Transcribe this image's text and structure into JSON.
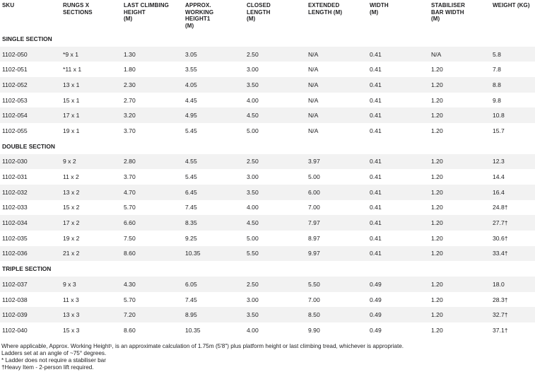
{
  "columns": [
    "SKU",
    "RUNGS X\nSECTIONS",
    "LAST CLIMBING\nHEIGHT\n(M)",
    "APPROX.\nWORKING\nHEIGHT1\n(M)",
    "CLOSED\nLENGTH\n(M)",
    "EXTENDED\nLENGTH (M)",
    "WIDTH\n(M)",
    "STABILISER\nBAR WIDTH\n(M)",
    "WEIGHT (KG)"
  ],
  "sections": [
    {
      "title": "SINGLE SECTION",
      "rows": [
        [
          "1102-050",
          "*9 x 1",
          "1.30",
          "3.05",
          "2.50",
          "N/A",
          "0.41",
          "N/A",
          "5.8"
        ],
        [
          "1102-051",
          "*11 x 1",
          "1.80",
          "3.55",
          "3.00",
          "N/A",
          "0.41",
          "1.20",
          "7.8"
        ],
        [
          "1102-052",
          "13 x 1",
          "2.30",
          "4.05",
          "3.50",
          "N/A",
          "0.41",
          "1.20",
          "8.8"
        ],
        [
          "1102-053",
          "15 x 1",
          "2.70",
          "4.45",
          "4.00",
          "N/A",
          "0.41",
          "1.20",
          "9.8"
        ],
        [
          "1102-054",
          "17 x 1",
          "3.20",
          "4.95",
          "4.50",
          "N/A",
          "0.41",
          "1.20",
          "10.8"
        ],
        [
          "1102-055",
          "19 x 1",
          "3.70",
          "5.45",
          "5.00",
          "N/A",
          "0.41",
          "1.20",
          "15.7"
        ]
      ]
    },
    {
      "title": "DOUBLE SECTION",
      "rows": [
        [
          "1102-030",
          "9 x 2",
          "2.80",
          "4.55",
          "2.50",
          "3.97",
          "0.41",
          "1.20",
          "12.3"
        ],
        [
          "1102-031",
          "11 x 2",
          "3.70",
          "5.45",
          "3.00",
          "5.00",
          "0.41",
          "1.20",
          "14.4"
        ],
        [
          "1102-032",
          "13 x 2",
          "4.70",
          "6.45",
          "3.50",
          "6.00",
          "0.41",
          "1.20",
          "16.4"
        ],
        [
          "1102-033",
          "15 x 2",
          "5.70",
          "7.45",
          "4.00",
          "7.00",
          "0.41",
          "1.20",
          "24.8†"
        ],
        [
          "1102-034",
          "17 x 2",
          "6.60",
          "8.35",
          "4.50",
          "7.97",
          "0.41",
          "1.20",
          "27.7†"
        ],
        [
          "1102-035",
          "19 x 2",
          "7.50",
          "9.25",
          "5.00",
          "8.97",
          "0.41",
          "1.20",
          "30.6†"
        ],
        [
          "1102-036",
          "21 x 2",
          "8.60",
          "10.35",
          "5.50",
          "9.97",
          "0.41",
          "1.20",
          "33.4†"
        ]
      ]
    },
    {
      "title": "TRIPLE SECTION",
      "rows": [
        [
          "1102-037",
          "9 x 3",
          "4.30",
          "6.05",
          "2.50",
          "5.50",
          "0.49",
          "1.20",
          "18.0"
        ],
        [
          "1102-038",
          "11 x 3",
          "5.70",
          "7.45",
          "3.00",
          "7.00",
          "0.49",
          "1.20",
          "28.3†"
        ],
        [
          "1102-039",
          "13 x 3",
          "7.20",
          "8.95",
          "3.50",
          "8.50",
          "0.49",
          "1.20",
          "32.7†"
        ],
        [
          "1102-040",
          "15 x 3",
          "8.60",
          "10.35",
          "4.00",
          "9.90",
          "0.49",
          "1.20",
          "37.1†"
        ]
      ]
    }
  ],
  "footnotes": [
    "Where applicable, Approx. Working Height¹, is an approximate calculation of 1.75m (5'8\") plus platform height or last climbing tread, whichever is appropriate.",
    "Ladders set at an angle of ~75° degrees.",
    "* Ladder does not require a stabiliser bar",
    "†Heavy Item - 2-person lift required."
  ]
}
